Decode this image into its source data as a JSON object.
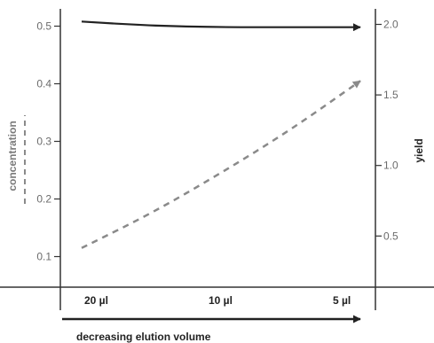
{
  "chart_data": {
    "type": "line",
    "xlabel": "decreasing elution volume",
    "x_categories": [
      "20 µl",
      "10 µl",
      "5 µl"
    ],
    "y_left": {
      "label": "concentration",
      "range": [
        0.05,
        0.53
      ],
      "ticks": [
        "0.1",
        "0.2",
        "0.3",
        "0.4",
        "0.5"
      ]
    },
    "y_right": {
      "label": "yield",
      "range": [
        0.15,
        2.11
      ],
      "ticks": [
        "0.5",
        "1.0",
        "1.5",
        "2.0"
      ]
    },
    "series": [
      {
        "axis": "right",
        "style": "solid",
        "color": "#222222",
        "x": [
          0,
          0.25,
          0.5,
          0.75,
          1
        ],
        "values": [
          2.02,
          1.99,
          1.98,
          1.98,
          1.98
        ]
      },
      {
        "axis": "left",
        "style": "dashed",
        "color": "#8a8a8a",
        "x": [
          0,
          0.25,
          0.5,
          0.75,
          1
        ],
        "values": [
          0.115,
          0.175,
          0.245,
          0.32,
          0.405
        ]
      }
    ],
    "grid": false
  }
}
